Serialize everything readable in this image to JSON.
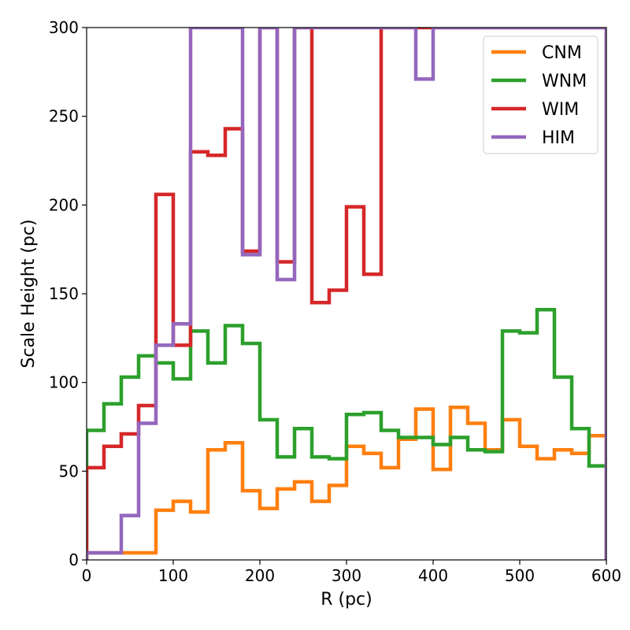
{
  "chart_data": {
    "type": "line",
    "style": "step",
    "xlabel": "R (pc)",
    "ylabel": "Scale Height (pc)",
    "xlim": [
      0,
      600
    ],
    "ylim": [
      0,
      300
    ],
    "xticks": [
      0,
      100,
      200,
      300,
      400,
      500,
      600
    ],
    "yticks": [
      0,
      50,
      100,
      150,
      200,
      250,
      300
    ],
    "grid": false,
    "legend_position": "top-right",
    "bin_edges": [
      0,
      20,
      40,
      60,
      80,
      100,
      120,
      140,
      160,
      180,
      200,
      220,
      240,
      260,
      280,
      300,
      320,
      340,
      360,
      380,
      400,
      420,
      440,
      460,
      480,
      500,
      520,
      540,
      560,
      580,
      600
    ],
    "series": [
      {
        "name": "CNM",
        "color": "#ff7f0e",
        "values": [
          4,
          4,
          4,
          4,
          28,
          33,
          27,
          62,
          66,
          39,
          29,
          40,
          44,
          33,
          42,
          64,
          60,
          52,
          68,
          85,
          51,
          86,
          77,
          62,
          79,
          64,
          57,
          62,
          60,
          70
        ]
      },
      {
        "name": "WNM",
        "color": "#2ca02c",
        "values": [
          73,
          88,
          103,
          115,
          111,
          102,
          129,
          111,
          132,
          122,
          79,
          58,
          74,
          58,
          57,
          82,
          83,
          73,
          69,
          69,
          65,
          69,
          62,
          61,
          129,
          128,
          141,
          103,
          74,
          53
        ]
      },
      {
        "name": "WIM",
        "color": "#d62728",
        "values": [
          52,
          64,
          71,
          87,
          206,
          121,
          230,
          228,
          243,
          174,
          300,
          168,
          300,
          145,
          152,
          199,
          161,
          300,
          300,
          300,
          300,
          300,
          300,
          300,
          300,
          300,
          300,
          300,
          300,
          300
        ]
      },
      {
        "name": "HIM",
        "color": "#9467bd",
        "values": [
          4,
          4,
          25,
          77,
          121,
          133,
          300,
          300,
          300,
          172,
          300,
          158,
          300,
          300,
          300,
          300,
          300,
          300,
          300,
          271,
          300,
          300,
          300,
          300,
          300,
          300,
          300,
          300,
          300,
          300
        ]
      }
    ]
  }
}
